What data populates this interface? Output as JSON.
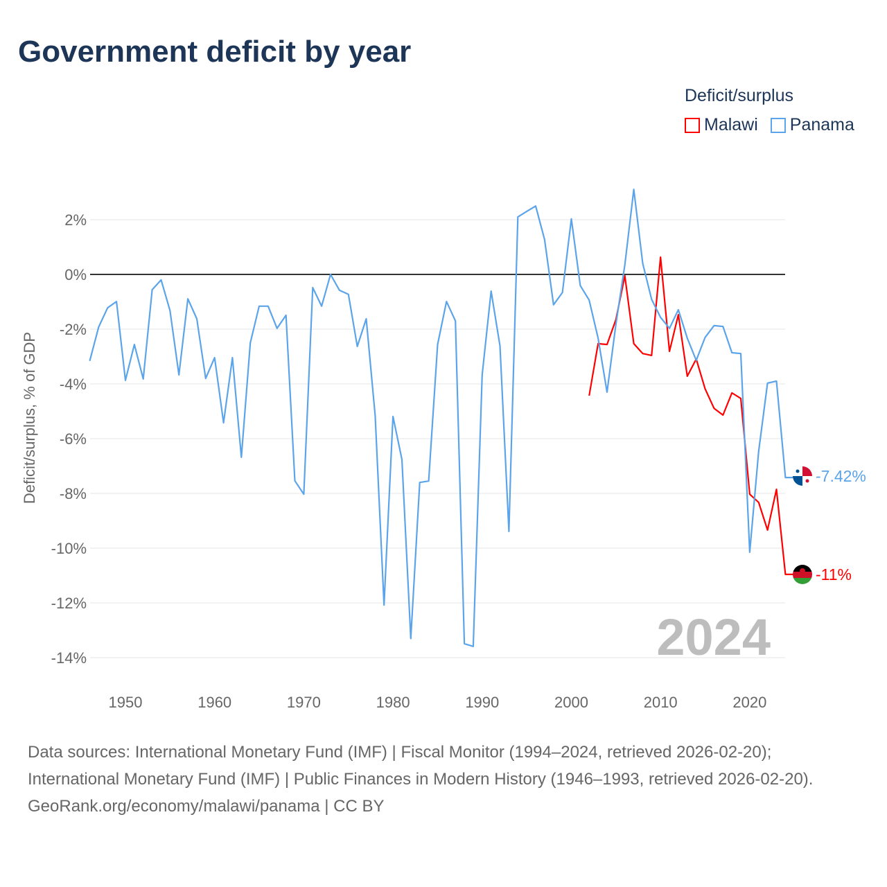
{
  "header": {
    "title": "Government deficit by year"
  },
  "legend": {
    "title": "Deficit/surplus",
    "items": [
      {
        "label": "Malawi",
        "color": "#ff0000"
      },
      {
        "label": "Panama",
        "color": "#5ba4ea"
      }
    ]
  },
  "year_badge": "2024",
  "footer": {
    "sources": "Data sources: International Monetary Fund (IMF) | Fiscal Monitor (1994–2024, retrieved 2026-02-20); International Monetary Fund (IMF) | Public Finances in Modern History (1946–1993, retrieved 2026-02-20).",
    "credit": "GeoRank.org/economy/malawi/panama | CC BY"
  },
  "chart_data": {
    "type": "line",
    "title": "Government deficit by year",
    "xlabel": "",
    "ylabel": "Deficit/surplus, % of GDP",
    "xlim": [
      1946,
      2024
    ],
    "ylim": [
      -15,
      3.5
    ],
    "xticks": [
      1950,
      1960,
      1970,
      1980,
      1990,
      2000,
      2010,
      2020
    ],
    "xtick_labels": [
      "1950",
      "1960",
      "1970",
      "1980",
      "1990",
      "2000",
      "2010",
      "2020"
    ],
    "yticks": [
      2,
      0,
      -2,
      -4,
      -6,
      -8,
      -10,
      -12,
      -14
    ],
    "ytick_labels": [
      "2%",
      "0%",
      "-2%",
      "-4%",
      "-6%",
      "-8%",
      "-10%",
      "-12%",
      "-14%"
    ],
    "grid": true,
    "series": [
      {
        "name": "Malawi",
        "color": "#ff0000",
        "end_label": "-11%",
        "start_year": 2002,
        "values": [
          -4.43,
          -2.53,
          -2.56,
          -1.65,
          -0.05,
          -2.53,
          -2.89,
          -2.96,
          0.63,
          -2.81,
          -1.47,
          -3.72,
          -3.09,
          -4.18,
          -4.89,
          -5.14,
          -4.33,
          -4.53,
          -8.03,
          -8.33,
          -9.34,
          -7.85,
          -10.96
        ]
      },
      {
        "name": "Panama",
        "color": "#5ba4ea",
        "end_label": "-7.42%",
        "start_year": 1946,
        "values": [
          -3.16,
          -1.92,
          -1.22,
          -0.99,
          -3.87,
          -2.56,
          -3.82,
          -0.56,
          -0.2,
          -1.32,
          -3.67,
          -0.89,
          -1.62,
          -3.8,
          -3.04,
          -5.42,
          -3.04,
          -6.68,
          -2.5,
          -1.16,
          -1.16,
          -1.97,
          -1.49,
          -7.54,
          -8.03,
          -0.48,
          -1.16,
          0,
          -0.58,
          -0.73,
          -2.63,
          -1.62,
          -5.16,
          -12.08,
          -5.19,
          -6.76,
          -13.3,
          -7.6,
          -7.55,
          -2.56,
          -0.99,
          -1.7,
          -13.49,
          -13.59,
          -3.67,
          -0.61,
          -2.61,
          -9.39,
          2.1,
          2.3,
          2.5,
          1.27,
          -1.11,
          -0.66,
          2.03,
          -0.41,
          -0.94,
          -2.33,
          -4.3,
          -1.82,
          0.35,
          3.11,
          0.4,
          -0.91,
          -1.57,
          -1.97,
          -1.29,
          -2.33,
          -3.14,
          -2.3,
          -1.87,
          -1.9,
          -2.86,
          -2.89,
          -10.15,
          -6.46,
          -3.97,
          -3.9,
          -7.42
        ]
      }
    ]
  }
}
